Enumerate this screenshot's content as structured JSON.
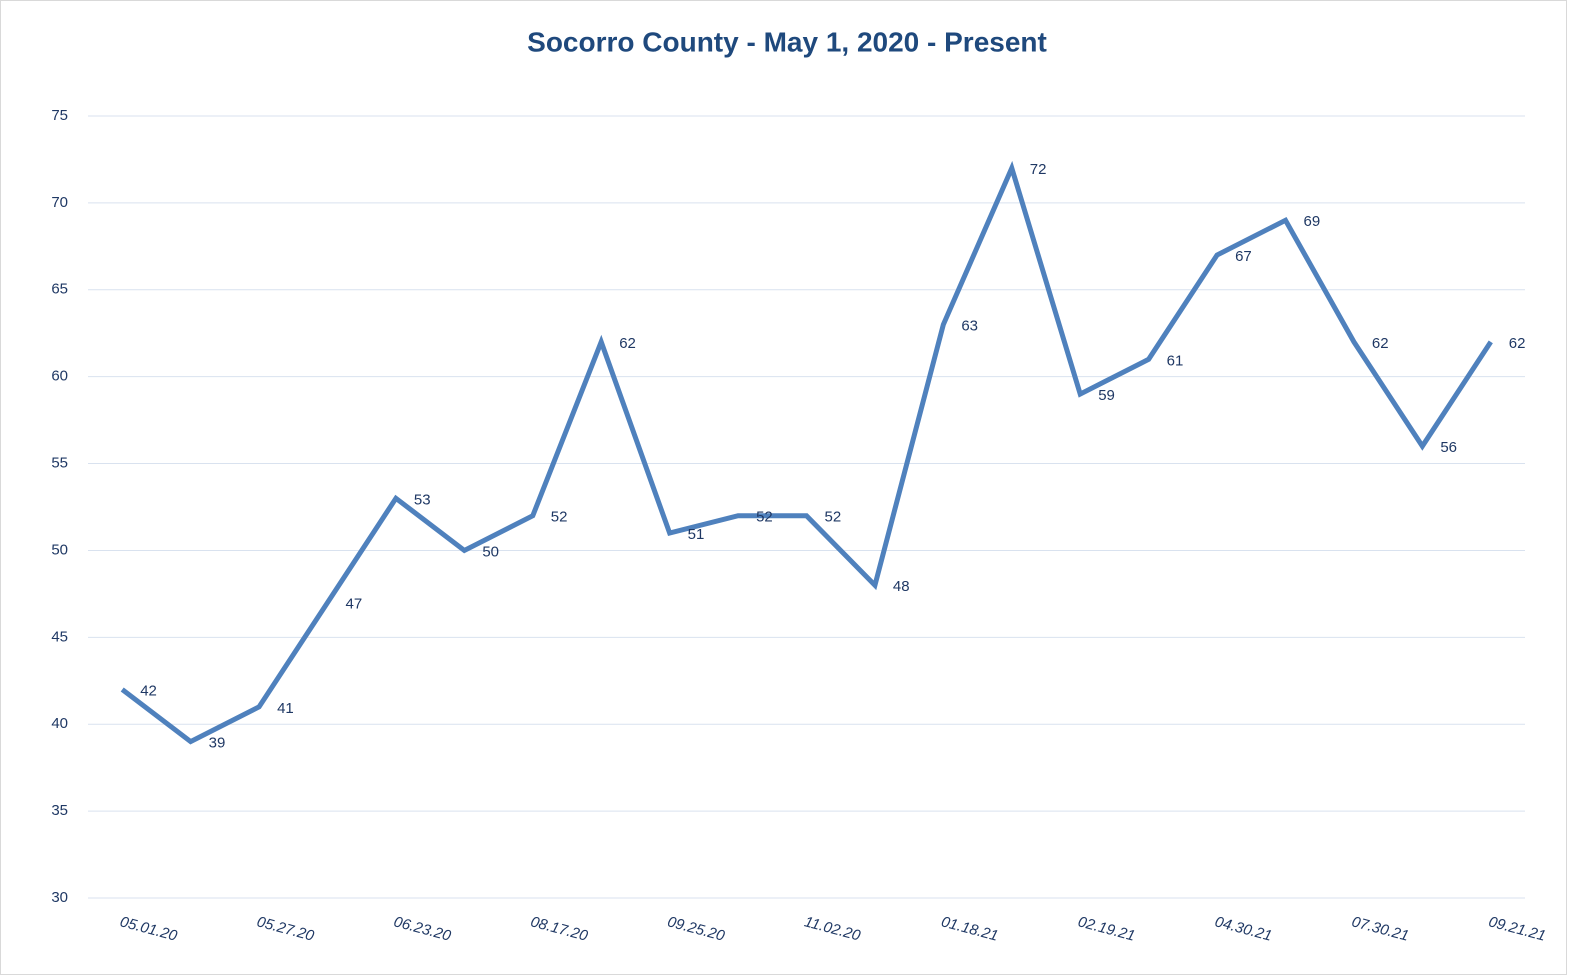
{
  "chart_data": {
    "type": "line",
    "title": "Socorro County - May 1, 2020 - Present",
    "categories": [
      "05.01.20",
      null,
      "05.27.20",
      null,
      "06.23.20",
      null,
      "08.17.20",
      null,
      "09.25.20",
      null,
      "11.02.20",
      null,
      "01.18.21",
      null,
      "02.19.21",
      null,
      "04.30.21",
      null,
      "07.30.21",
      null,
      "09.21.21"
    ],
    "series": [
      {
        "name": "Socorro County",
        "color": "#4f81bd",
        "values": [
          42,
          39,
          41,
          47,
          53,
          50,
          52,
          62,
          51,
          52,
          52,
          48,
          63,
          72,
          59,
          61,
          67,
          69,
          62,
          56,
          62
        ]
      }
    ],
    "ylim": [
      30,
      75
    ],
    "yticks": [
      30,
      35,
      40,
      45,
      50,
      55,
      60,
      65,
      70,
      75
    ],
    "grid": true
  }
}
